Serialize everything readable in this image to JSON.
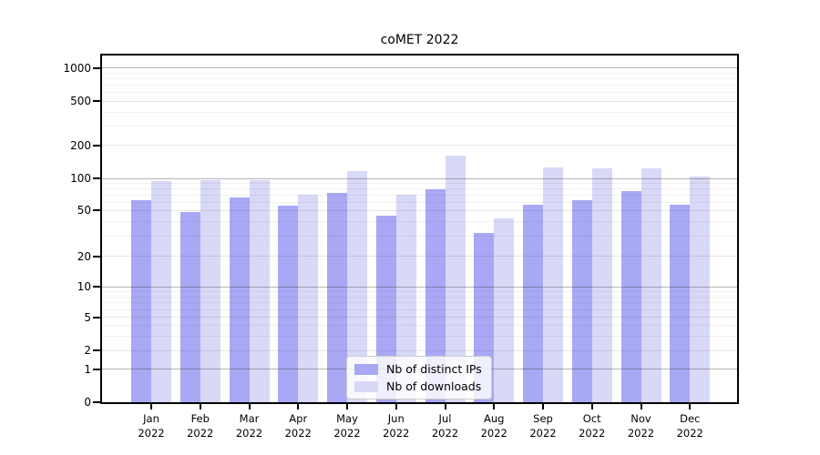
{
  "chart_data": {
    "type": "bar",
    "title": "coMET 2022",
    "categories": [
      "Jan",
      "Feb",
      "Mar",
      "Apr",
      "May",
      "Jun",
      "Jul",
      "Aug",
      "Sep",
      "Oct",
      "Nov",
      "Dec"
    ],
    "category_year": "2022",
    "series": [
      {
        "name": "Nb of distinct IPs",
        "color": "#a8a8f4",
        "values": [
          63,
          49,
          66,
          56,
          74,
          45,
          80,
          32,
          57,
          63,
          76,
          57
        ]
      },
      {
        "name": "Nb of downloads",
        "color": "#d8d8f7",
        "values": [
          94,
          97,
          97,
          71,
          118,
          70,
          163,
          43,
          127,
          123,
          125,
          105
        ]
      }
    ],
    "yscale": "symlog",
    "yticks": [
      0,
      1,
      2,
      5,
      10,
      20,
      50,
      100,
      200,
      500,
      1000
    ],
    "minor_yticks": [
      3,
      4,
      6,
      7,
      8,
      9,
      30,
      40,
      60,
      70,
      80,
      90,
      300,
      400,
      600,
      700,
      800,
      900
    ],
    "ylim": [
      0,
      1300
    ],
    "grid": true,
    "legend_position": "lower center"
  }
}
